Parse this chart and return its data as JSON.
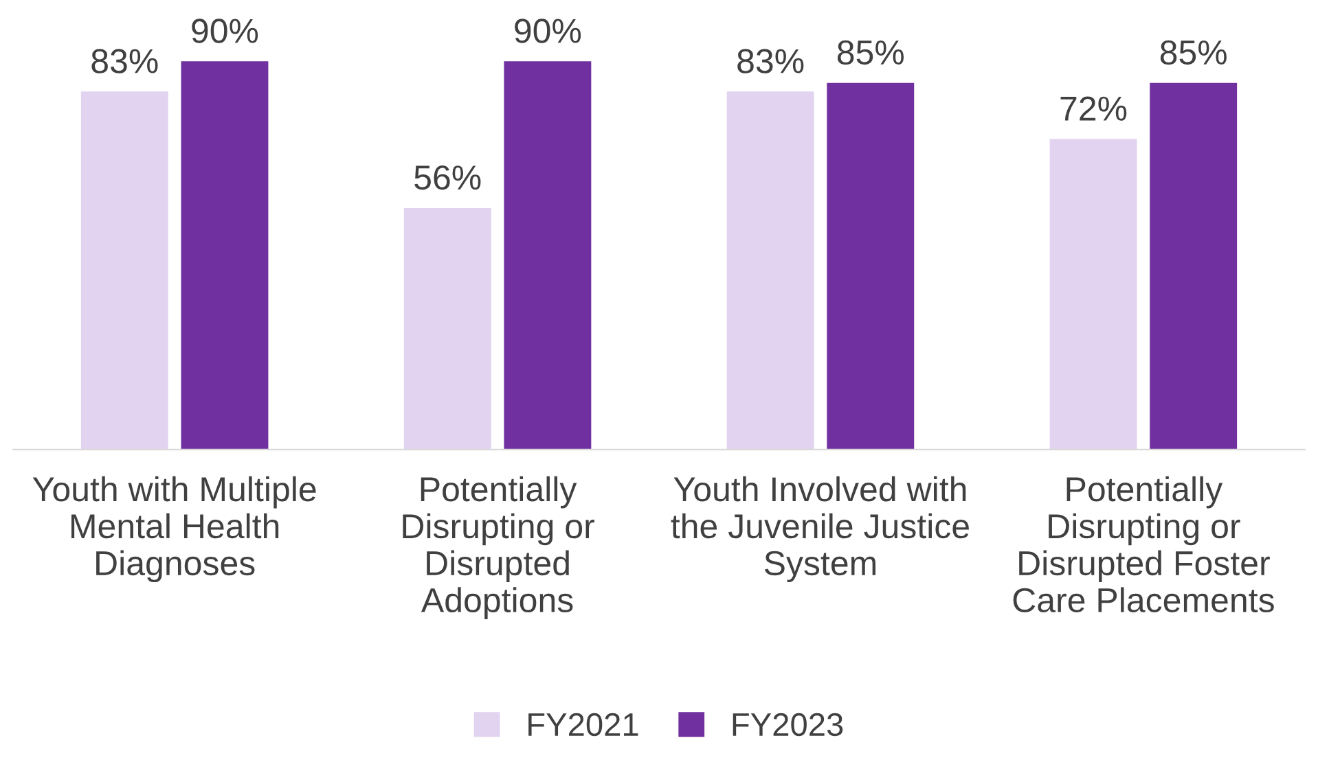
{
  "chart_data": {
    "type": "bar",
    "categories": [
      "Youth with Multiple\nMental Health\nDiagnoses",
      "Potentially\nDisrupting or\nDisrupted\nAdoptions",
      "Youth Involved with\nthe Juvenile Justice\nSystem",
      "Potentially\nDisrupting or\nDisrupted Foster\nCare Placements"
    ],
    "series": [
      {
        "name": "FY2021",
        "color": "#e2d3f0",
        "values": [
          83,
          56,
          83,
          72
        ],
        "value_labels": [
          "83%",
          "56%",
          "83%",
          "72%"
        ]
      },
      {
        "name": "FY2023",
        "color": "#7030a0",
        "values": [
          90,
          90,
          85,
          85
        ],
        "value_labels": [
          "90%",
          "90%",
          "85%",
          "85%"
        ]
      }
    ],
    "tick_labels": "x",
    "grid": false,
    "legend": "bottom"
  }
}
